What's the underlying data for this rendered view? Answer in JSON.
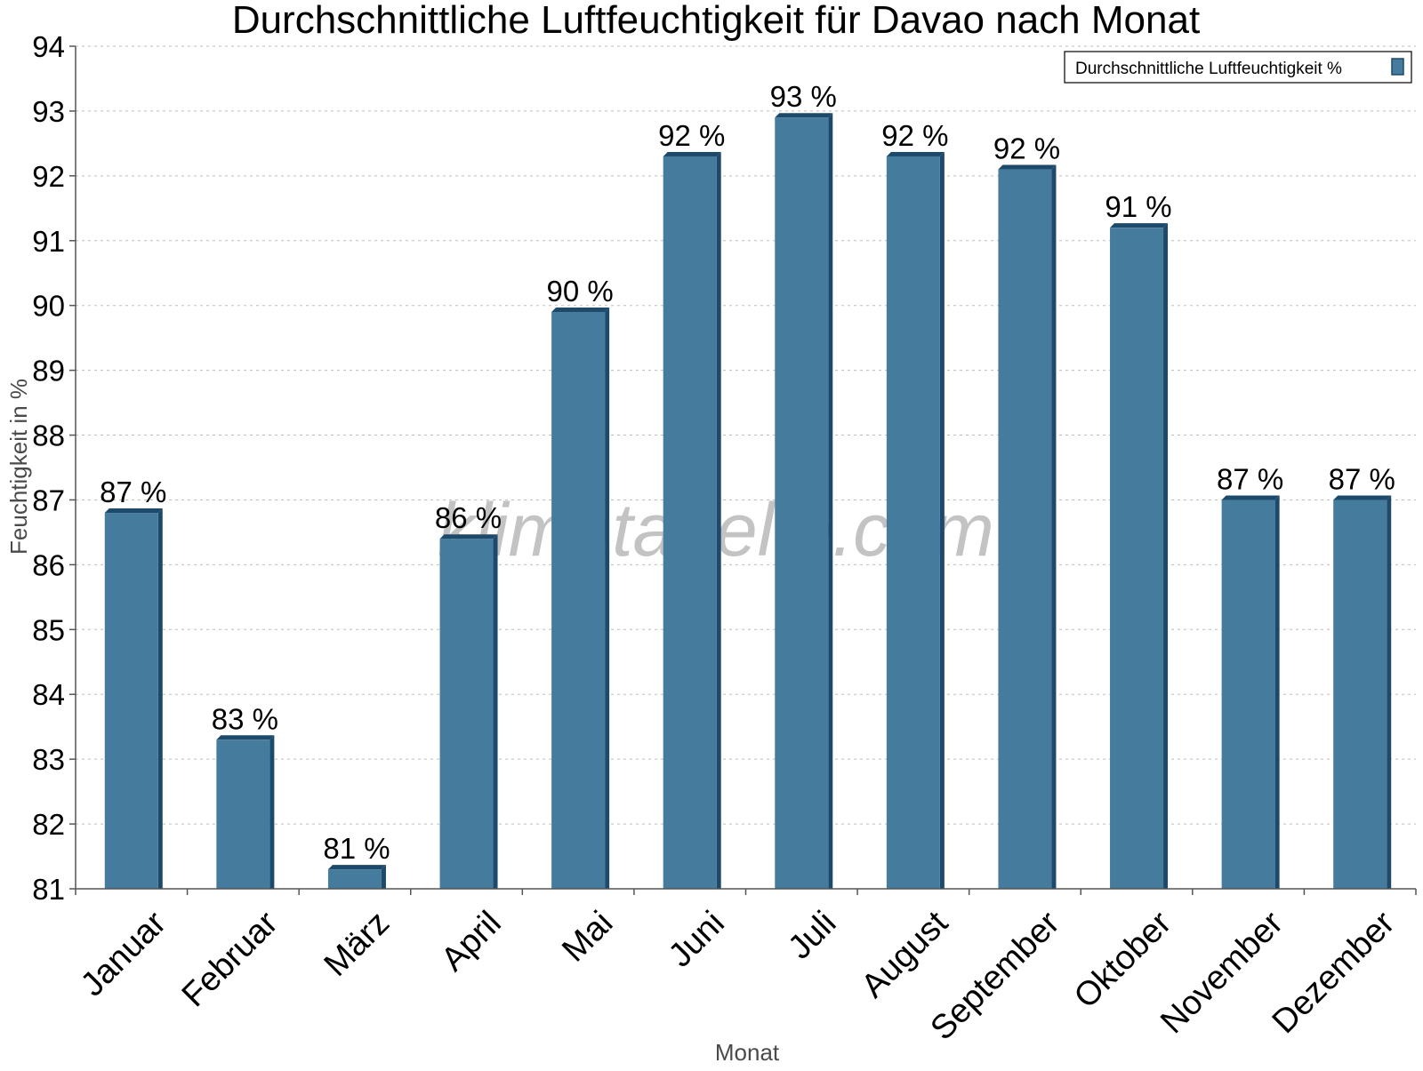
{
  "chart_data": {
    "type": "bar",
    "title": "Durchschnittliche Luftfeuchtigkeit für Davao nach Monat",
    "xlabel": "Monat",
    "ylabel": "Feuchtigkeit in %",
    "ylim": [
      81,
      94
    ],
    "yticks": [
      "81",
      "82",
      "83",
      "84",
      "85",
      "86",
      "87",
      "88",
      "89",
      "90",
      "91",
      "92",
      "93",
      "94"
    ],
    "grid": true,
    "legend_position": "top-right",
    "categories": [
      "Januar",
      "Februar",
      "März",
      "April",
      "Mai",
      "Juni",
      "Juli",
      "August",
      "September",
      "Oktober",
      "November",
      "Dezember"
    ],
    "series": [
      {
        "name": "Durchschnittliche Luftfeuchtigkeit %",
        "values": [
          86.8,
          83.3,
          81.3,
          86.4,
          89.9,
          92.3,
          92.9,
          92.3,
          92.1,
          91.2,
          87.0,
          87.0
        ],
        "labels": [
          "87 %",
          "83 %",
          "81 %",
          "86 %",
          "90 %",
          "92 %",
          "93 %",
          "92 %",
          "92 %",
          "91 %",
          "87 %",
          "87 %"
        ],
        "color": "#457b9d",
        "edge_color": "#1d4a6b"
      }
    ],
    "watermark": "klimatabelle.com"
  }
}
